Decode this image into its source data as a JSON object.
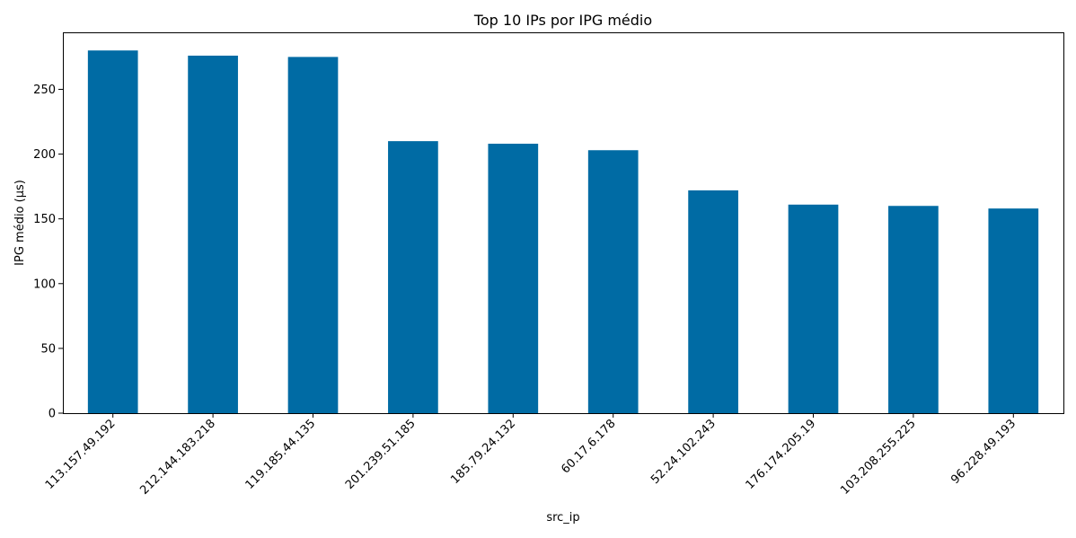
{
  "chart_data": {
    "type": "bar",
    "title": "Top 10 IPs por IPG médio",
    "xlabel": "src_ip",
    "ylabel": "IPG médio (µs)",
    "categories": [
      "113.157.49.192",
      "212.144.183.218",
      "119.185.44.135",
      "201.239.51.185",
      "185.79.24.132",
      "60.17.6.178",
      "52.24.102.243",
      "176.174.205.19",
      "103.208.255.225",
      "96.228.49.193"
    ],
    "values": [
      280,
      276,
      275,
      210,
      208,
      203,
      172,
      161,
      160,
      158
    ],
    "ylim": [
      0,
      294
    ],
    "yticks": [
      0,
      50,
      100,
      150,
      200,
      250
    ],
    "grid": false,
    "legend": "none",
    "bar_color": "#006ba4"
  }
}
